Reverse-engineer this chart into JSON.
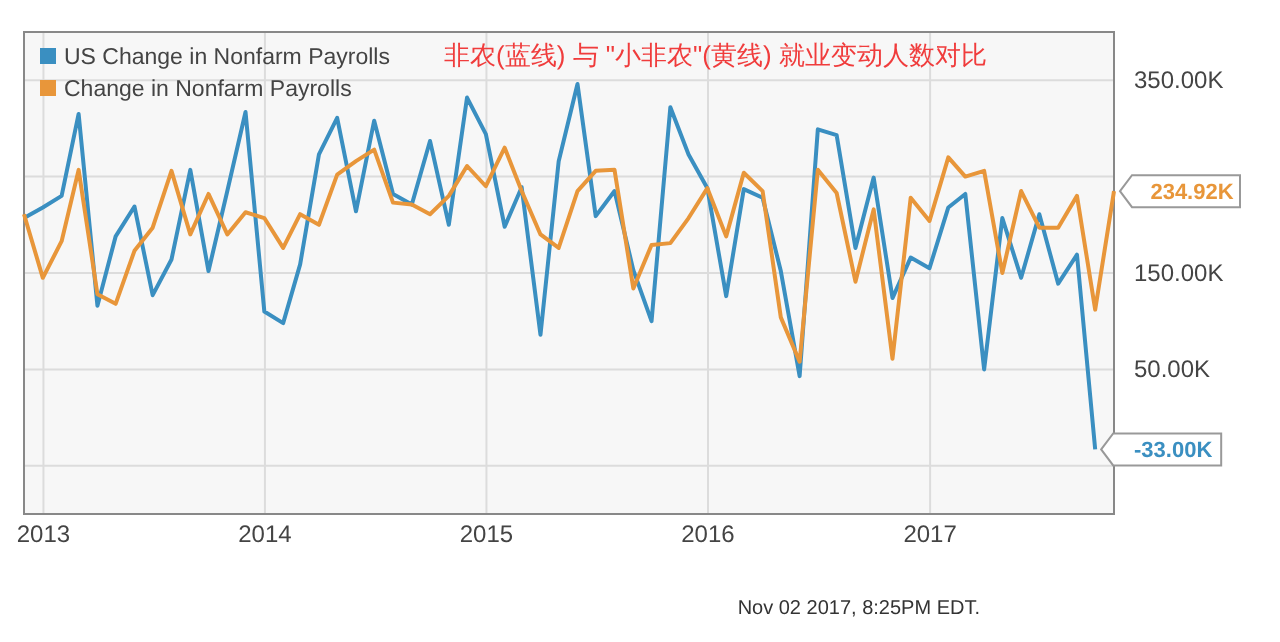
{
  "chart_data": {
    "type": "line",
    "title": "非农(蓝线) 与 \"小非农\"(黄线) 就业变动人数对比",
    "x": [
      "2012-11-30",
      "2012-12-31",
      "2013-01-31",
      "2013-02-28",
      "2013-03-31",
      "2013-04-30",
      "2013-05-31",
      "2013-06-30",
      "2013-07-31",
      "2013-08-31",
      "2013-09-30",
      "2013-10-31",
      "2013-11-30",
      "2013-12-31",
      "2014-01-31",
      "2014-02-28",
      "2014-03-31",
      "2014-04-30",
      "2014-05-31",
      "2014-06-30",
      "2014-07-31",
      "2014-08-31",
      "2014-09-30",
      "2014-10-31",
      "2014-11-30",
      "2014-12-31",
      "2015-01-31",
      "2015-02-28",
      "2015-03-31",
      "2015-04-30",
      "2015-05-31",
      "2015-06-30",
      "2015-07-31",
      "2015-08-31",
      "2015-09-30",
      "2015-10-31",
      "2015-11-30",
      "2015-12-31",
      "2016-01-31",
      "2016-02-29",
      "2016-03-31",
      "2016-04-30",
      "2016-05-31",
      "2016-06-30",
      "2016-07-31",
      "2016-08-31",
      "2016-09-30",
      "2016-10-31",
      "2016-11-30",
      "2016-12-31",
      "2017-01-31",
      "2017-02-28",
      "2017-03-31",
      "2017-04-30",
      "2017-05-31",
      "2017-06-30",
      "2017-07-31",
      "2017-08-31",
      "2017-09-30",
      "2017-10-31"
    ],
    "series": [
      {
        "name": "US Change in Nonfarm Payrolls",
        "color": "#3a8fc1",
        "values": [
          207,
          218,
          230,
          315,
          116,
          188,
          219,
          127,
          164,
          257,
          152,
          235,
          317,
          110,
          98,
          159,
          273,
          311,
          214,
          308,
          232,
          221,
          287,
          200,
          332,
          294,
          198,
          239,
          86,
          266,
          346,
          209,
          235,
          153,
          100,
          322,
          273,
          238,
          126,
          237,
          228,
          152,
          43,
          299,
          293,
          176,
          249,
          124,
          166,
          155,
          218,
          232,
          50,
          207,
          145,
          211,
          139,
          169,
          -33,
          null
        ],
        "value_labels": [
          null,
          null,
          null,
          null,
          null,
          null,
          null,
          null,
          null,
          null,
          null,
          null,
          null,
          null,
          null,
          null,
          null,
          null,
          null,
          null,
          null,
          null,
          null,
          null,
          null,
          null,
          null,
          null,
          null,
          null,
          null,
          null,
          null,
          null,
          null,
          null,
          null,
          null,
          null,
          null,
          null,
          null,
          null,
          null,
          null,
          null,
          null,
          null,
          null,
          null,
          null,
          null,
          null,
          null,
          null,
          null,
          null,
          null,
          "-33.00K",
          null
        ]
      },
      {
        "name": "Change in Nonfarm Payrolls",
        "color": "#e8963a",
        "values": [
          211,
          145,
          183,
          257,
          128,
          118,
          173,
          197,
          256,
          190,
          232,
          190,
          213,
          207,
          176,
          211,
          200,
          252,
          266,
          278,
          223,
          221,
          211,
          230,
          261,
          240,
          280,
          235,
          190,
          176,
          235,
          256,
          257,
          134,
          179,
          181,
          207,
          238,
          188,
          254,
          235,
          104,
          58,
          257,
          233,
          141,
          216,
          61,
          228,
          204,
          270,
          250,
          256,
          150,
          235,
          197,
          197,
          230,
          112,
          234.92
        ],
        "value_labels": [
          null,
          null,
          null,
          null,
          null,
          null,
          null,
          null,
          null,
          null,
          null,
          null,
          null,
          null,
          null,
          null,
          null,
          null,
          null,
          null,
          null,
          null,
          null,
          null,
          null,
          null,
          null,
          null,
          null,
          null,
          null,
          null,
          null,
          null,
          null,
          null,
          null,
          null,
          null,
          null,
          null,
          null,
          null,
          null,
          null,
          null,
          null,
          null,
          null,
          null,
          null,
          null,
          null,
          null,
          null,
          null,
          null,
          null,
          null,
          "234.92K"
        ]
      }
    ],
    "xlim": [
      "2012-11-30",
      "2017-10-31"
    ],
    "xticks": [
      {
        "value": "2013-01-01",
        "label": "2013"
      },
      {
        "value": "2014-01-01",
        "label": "2014"
      },
      {
        "value": "2015-01-01",
        "label": "2015"
      },
      {
        "value": "2016-01-01",
        "label": "2016"
      },
      {
        "value": "2017-01-01",
        "label": "2017"
      }
    ],
    "ylim": [
      -100,
      400
    ],
    "yticks": [
      {
        "value": -50,
        "label": null
      },
      {
        "value": 50,
        "label": "50.00K"
      },
      {
        "value": 150,
        "label": "150.00K"
      },
      {
        "value": 250,
        "label": null
      },
      {
        "value": 350,
        "label": "350.00K"
      }
    ],
    "grid": true,
    "legend": "top left",
    "marker": "none",
    "line_style": "solid",
    "annotations": [
      "Nov 02 2017, 8:25PM EDT."
    ]
  }
}
